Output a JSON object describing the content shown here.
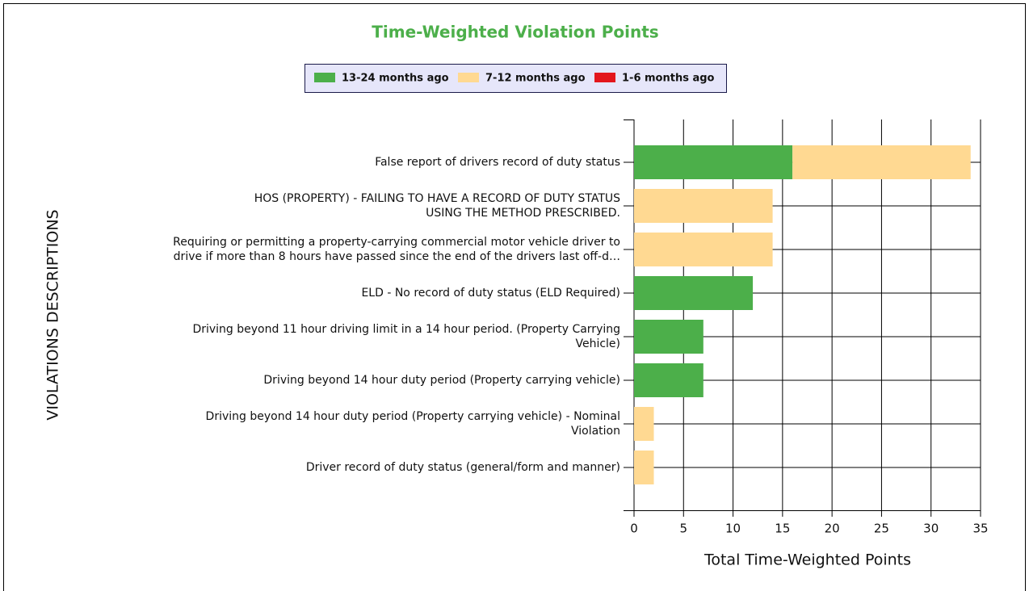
{
  "chart_data": {
    "type": "stacked_barh",
    "title": "Time-Weighted Violation Points",
    "xlabel": "Total Time-Weighted Points",
    "ylabel": "VIOLATIONS DESCRIPTIONS",
    "categories": [
      "False report of drivers record of duty status",
      "HOS (PROPERTY) - FAILING TO HAVE A RECORD OF DUTY STATUS\nUSING THE METHOD PRESCRIBED.",
      "Requiring or permitting a property-carrying commercial motor vehicle driver to\ndrive if more than 8 hours have passed since the end of the drivers last off-d…",
      "ELD - No record of duty status (ELD Required)",
      "Driving beyond 11 hour driving limit in a 14 hour period. (Property Carrying\nVehicle)",
      "Driving beyond 14 hour duty period (Property carrying vehicle)",
      "Driving beyond 14 hour duty period (Property carrying vehicle) - Nominal\nViolation",
      "Driver  record of duty status (general/form and manner)"
    ],
    "series": [
      {
        "name": "13-24 months ago",
        "color": "#4caf4a",
        "values": [
          16,
          0,
          0,
          12,
          7,
          7,
          0,
          0
        ]
      },
      {
        "name": "7-12 months ago",
        "color": "#ffd992",
        "values": [
          18,
          14,
          14,
          0,
          0,
          0,
          2,
          2
        ]
      },
      {
        "name": "1-6 months ago",
        "color": "#e3161c",
        "values": [
          0,
          0,
          0,
          0,
          0,
          0,
          0,
          0
        ]
      }
    ],
    "xlim": [
      0,
      35
    ],
    "xticks": [
      0,
      5,
      10,
      15,
      20,
      25,
      30,
      35
    ],
    "grid": true
  }
}
